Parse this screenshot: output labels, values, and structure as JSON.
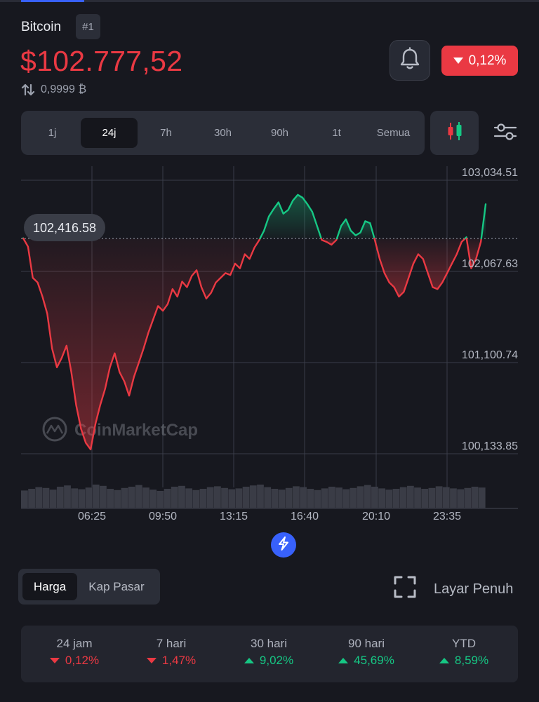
{
  "header": {
    "coin_name": "Bitcoin",
    "rank": "#1",
    "price": "$102.777,52",
    "btc_value": "0,9999 ₿",
    "change_24h": "0,12%",
    "change_direction": "down"
  },
  "range_tabs": [
    {
      "label": "1j",
      "active": false
    },
    {
      "label": "24j",
      "active": true
    },
    {
      "label": "7h",
      "active": false
    },
    {
      "label": "30h",
      "active": false
    },
    {
      "label": "90h",
      "active": false
    },
    {
      "label": "1t",
      "active": false
    },
    {
      "label": "Semua",
      "active": false
    }
  ],
  "icons": {
    "bell": "bell-icon",
    "candle": "candlestick-icon",
    "settings": "sliders-icon",
    "flash": "lightning-icon",
    "fullscreen": "expand-icon"
  },
  "chart_data": {
    "type": "line",
    "watermark": "CoinMarketCap",
    "reference_value": 102416.58,
    "reference_label": "102,416.58",
    "y_ticks": [
      "103,034.51",
      "102,067.63",
      "101,100.74",
      "100,133.85"
    ],
    "y_tick_values": [
      103034.51,
      102067.63,
      101100.74,
      100133.85
    ],
    "x_ticks": [
      "06:25",
      "09:50",
      "13:15",
      "16:40",
      "20:10",
      "23:35"
    ],
    "ylim": [
      99860,
      103140
    ],
    "colors": {
      "above": "#16c784",
      "below": "#ea3943"
    },
    "series": [
      {
        "values": [
          102420,
          102330,
          102000,
          101950,
          101800,
          101620,
          101250,
          101050,
          101150,
          101280,
          101000,
          100650,
          100400,
          100250,
          100180,
          100450,
          100650,
          100820,
          101050,
          101200,
          101000,
          100900,
          100750,
          100950,
          101100,
          101250,
          101420,
          101560,
          101700,
          101650,
          101720,
          101880,
          101800,
          101960,
          101900,
          102020,
          102080,
          101900,
          101780,
          101840,
          101950,
          102000,
          102050,
          102030,
          102150,
          102100,
          102250,
          102200,
          102320,
          102400,
          102500,
          102650,
          102730,
          102800,
          102680,
          102720,
          102820,
          102880,
          102850,
          102780,
          102700,
          102550,
          102400,
          102380,
          102350,
          102400,
          102550,
          102620,
          102500,
          102450,
          102480,
          102600,
          102580,
          102400,
          102200,
          102050,
          101950,
          101900,
          101800,
          101850,
          102000,
          102150,
          102250,
          102200,
          102050,
          101900,
          101880,
          101950,
          102050,
          102150,
          102250,
          102380,
          102430,
          102100,
          102200,
          102380,
          102780
        ]
      }
    ],
    "volume": [
      0.62,
      0.7,
      0.78,
      0.74,
      0.66,
      0.8,
      0.86,
      0.72,
      0.68,
      0.76,
      0.9,
      0.84,
      0.7,
      0.64,
      0.74,
      0.8,
      0.88,
      0.76,
      0.66,
      0.6,
      0.7,
      0.8,
      0.84,
      0.72,
      0.64,
      0.7,
      0.78,
      0.82,
      0.74,
      0.68,
      0.72,
      0.8,
      0.86,
      0.9,
      0.78,
      0.7,
      0.66,
      0.74,
      0.82,
      0.78,
      0.7,
      0.64,
      0.72,
      0.8,
      0.76,
      0.68,
      0.74,
      0.82,
      0.88,
      0.8,
      0.72,
      0.66,
      0.7,
      0.78,
      0.84,
      0.76,
      0.7,
      0.74,
      0.82,
      0.78,
      0.72,
      0.68,
      0.74,
      0.8,
      0.76
    ]
  },
  "price_toggle": [
    {
      "label": "Harga",
      "active": true
    },
    {
      "label": "Kap Pasar",
      "active": false
    }
  ],
  "fullscreen_label": "Layar Penuh",
  "stats": [
    {
      "label": "24 jam",
      "value": "0,12%",
      "direction": "down"
    },
    {
      "label": "7 hari",
      "value": "1,47%",
      "direction": "down"
    },
    {
      "label": "30 hari",
      "value": "9,02%",
      "direction": "up"
    },
    {
      "label": "90 hari",
      "value": "45,69%",
      "direction": "up"
    },
    {
      "label": "YTD",
      "value": "8,59%",
      "direction": "up"
    }
  ]
}
